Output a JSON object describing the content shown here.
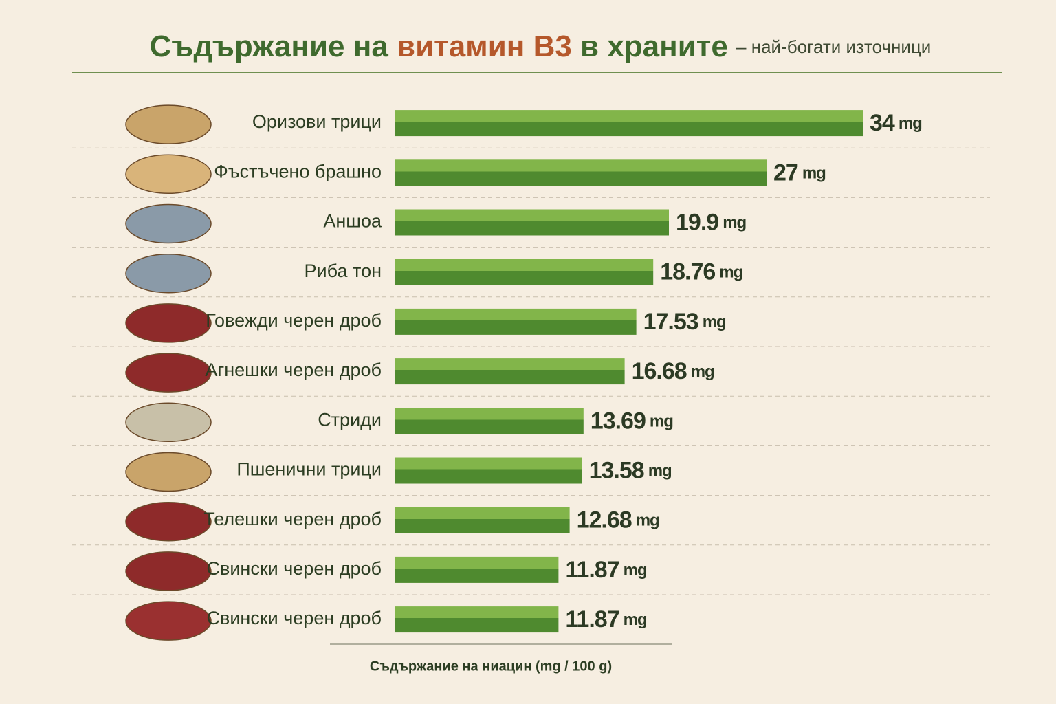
{
  "chart_data": {
    "type": "bar",
    "orientation": "horizontal",
    "title": [
      "Съдържание на",
      "витамин B3",
      "в храните"
    ],
    "subtitle": "– най-богати източници",
    "categories": [
      "Оризови трици",
      "Фъстъчено брашно",
      "Аншоа",
      "Риба тон",
      "Говежди черен дроб",
      "Агнешки черен дроб",
      "Стриди",
      "Пшенични трици",
      "Телешки черен дроб",
      "Свински черен дроб",
      "Свински черен дроб"
    ],
    "values": [
      34,
      27,
      19.9,
      18.76,
      17.53,
      16.68,
      13.69,
      13.58,
      12.68,
      11.87,
      11.87
    ],
    "value_unit": "mg",
    "color": "#5b9a35",
    "x_label": "Съдържание на ниацин (mg / 100 g)"
  }
}
